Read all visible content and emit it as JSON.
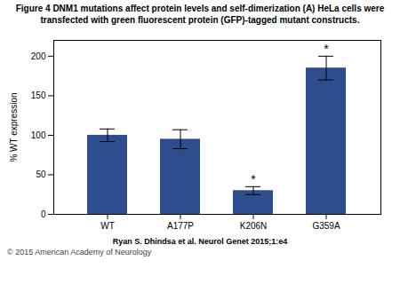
{
  "chart_data": {
    "type": "bar",
    "title": "Figure 4 DNM1 mutations affect protein levels and self-dimerization (A) HeLa cells were",
    "subtitle": "transfected with green fluorescent protein (GFP)-tagged mutant constructs.",
    "categories": [
      "WT",
      "A177P",
      "K206N",
      "G359A"
    ],
    "values": [
      100,
      95,
      30,
      185
    ],
    "errors": [
      8,
      12,
      5,
      15
    ],
    "color": "#2e4d8e",
    "ylabel": "% WT expression",
    "ylim": [
      0,
      220
    ],
    "yticks": [
      0,
      50,
      100,
      150,
      200
    ],
    "annotations": [
      {
        "category": "K206N",
        "text": "*"
      },
      {
        "category": "G359A",
        "text": "*"
      }
    ],
    "notes": [
      "Ryan S. Dhindsa et al. Neurol Genet 2015;1:e4",
      "© 2015 American Academy of Neurology"
    ]
  }
}
